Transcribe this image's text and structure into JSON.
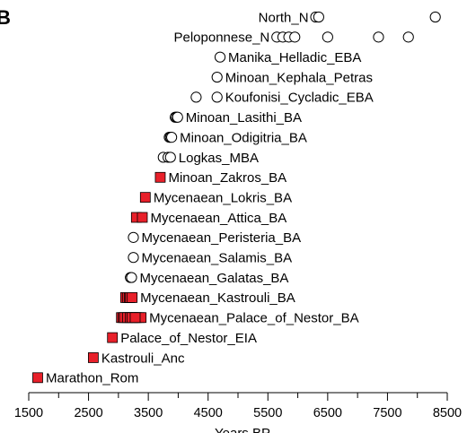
{
  "panel_letter": "B",
  "chart_data": {
    "type": "scatter",
    "xlabel": "Years BP",
    "ylabel": "",
    "xlim": [
      1500,
      8600
    ],
    "xticks": [
      1500,
      2500,
      3500,
      4500,
      5500,
      6500,
      7500,
      8500
    ],
    "grid": false,
    "legend": "none",
    "marker_styles": {
      "circle": {
        "fill": "#ffffff",
        "stroke": "#000000"
      },
      "square": {
        "fill": "#e8202a",
        "stroke": "#000000"
      }
    },
    "groups": [
      {
        "name": "North_N",
        "marker": "circle",
        "values": [
          6300,
          6350,
          8300
        ]
      },
      {
        "name": "Peloponnese_N",
        "marker": "circle",
        "values": [
          5650,
          5750,
          5850,
          5950,
          6500,
          7350,
          7850
        ]
      },
      {
        "name": "Manika_Helladic_EBA",
        "marker": "circle",
        "values": [
          4700
        ]
      },
      {
        "name": "Minoan_Kephala_Petras",
        "marker": "circle",
        "values": [
          4650
        ]
      },
      {
        "name": "Koufonisi_Cycladic_EBA",
        "marker": "circle",
        "values": [
          4300,
          4650
        ]
      },
      {
        "name": "Minoan_Lasithi_BA",
        "marker": "circle",
        "values": [
          3950,
          3970,
          3990
        ]
      },
      {
        "name": "Minoan_Odigitria_BA",
        "marker": "circle",
        "values": [
          3850,
          3870,
          3890
        ]
      },
      {
        "name": "Logkas_MBA",
        "marker": "circle",
        "values": [
          3750,
          3830,
          3870
        ]
      },
      {
        "name": "Minoan_Zakros_BA",
        "marker": "square",
        "values": [
          3700
        ]
      },
      {
        "name": "Mycenaean_Lokris_BA",
        "marker": "square",
        "values": [
          3450
        ]
      },
      {
        "name": "Mycenaean_Attica_BA",
        "marker": "square",
        "values": [
          3300,
          3400
        ]
      },
      {
        "name": "Mycenaean_Peristeria_BA",
        "marker": "circle",
        "values": [
          3250
        ]
      },
      {
        "name": "Mycenaean_Salamis_BA",
        "marker": "circle",
        "values": [
          3250
        ]
      },
      {
        "name": "Mycenaean_Galatas_BA",
        "marker": "circle",
        "values": [
          3200,
          3220
        ]
      },
      {
        "name": "Mycenaean_Kastrouli_BA",
        "marker": "square",
        "values": [
          3120,
          3150,
          3180,
          3200,
          3230
        ]
      },
      {
        "name": "Mycenaean_Palace_of_Nestor_BA",
        "marker": "square",
        "values": [
          3050,
          3080,
          3100,
          3150,
          3200,
          3250,
          3300,
          3350,
          3380,
          3230,
          3280
        ]
      },
      {
        "name": "Palace_of_Nestor_EIA",
        "marker": "square",
        "values": [
          2900
        ]
      },
      {
        "name": "Kastrouli_Anc",
        "marker": "square",
        "values": [
          2580
        ]
      },
      {
        "name": "Marathon_Rom",
        "marker": "square",
        "values": [
          1650
        ]
      }
    ]
  }
}
